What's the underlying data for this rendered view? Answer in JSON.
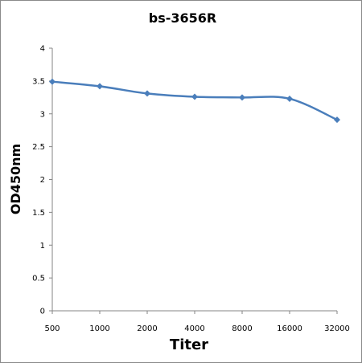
{
  "chart_data": {
    "type": "line",
    "title": "bs-3656R",
    "xlabel": "Titer",
    "ylabel": "OD450nm",
    "categories": [
      "500",
      "1000",
      "2000",
      "4000",
      "8000",
      "16000",
      "32000"
    ],
    "series": [
      {
        "values": [
          3.49,
          3.42,
          3.31,
          3.26,
          3.25,
          3.23,
          2.91
        ]
      }
    ],
    "ylim": [
      0,
      4
    ],
    "yticks": [
      "0",
      "0.5",
      "1",
      "1.5",
      "2",
      "2.5",
      "3",
      "3.5",
      "4"
    ],
    "grid": false,
    "legend": "none",
    "colors": {
      "series": "#4a7ebb",
      "axis": "#868686"
    }
  }
}
